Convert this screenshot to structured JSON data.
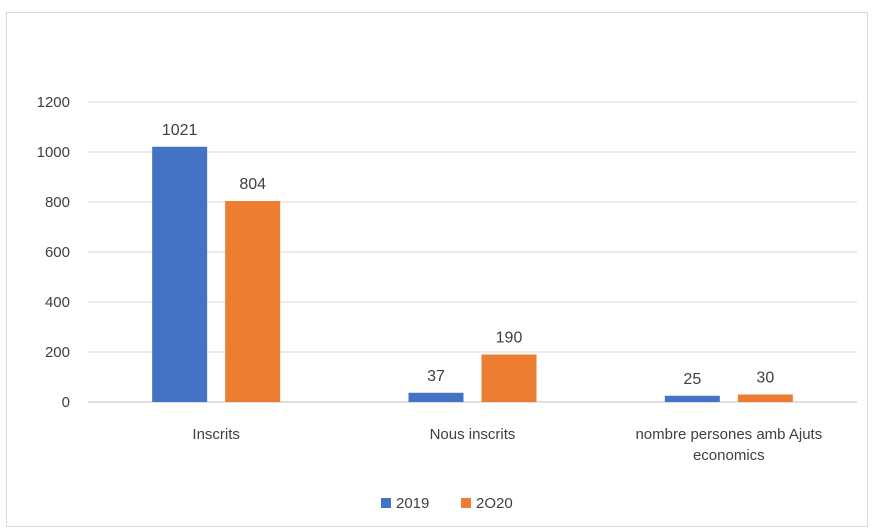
{
  "chart_data": {
    "type": "bar",
    "title": "",
    "xlabel": "",
    "ylabel": "",
    "categories": [
      "Inscrits",
      "Nous inscrits",
      "nombre persones amb Ajuts economics"
    ],
    "category_lines": [
      [
        "Inscrits"
      ],
      [
        "Nous inscrits"
      ],
      [
        "nombre persones amb Ajuts",
        "economics"
      ]
    ],
    "series": [
      {
        "name": "2019",
        "color": "#4472C4",
        "values": [
          1021,
          37,
          25
        ]
      },
      {
        "name": "2O20",
        "color": "#ED7D31",
        "values": [
          804,
          190,
          30
        ]
      }
    ],
    "ylim": [
      0,
      1200
    ],
    "yticks": [
      0,
      200,
      400,
      600,
      800,
      1000,
      1200
    ],
    "grid": true,
    "legend": "bottom",
    "data_labels": true
  }
}
